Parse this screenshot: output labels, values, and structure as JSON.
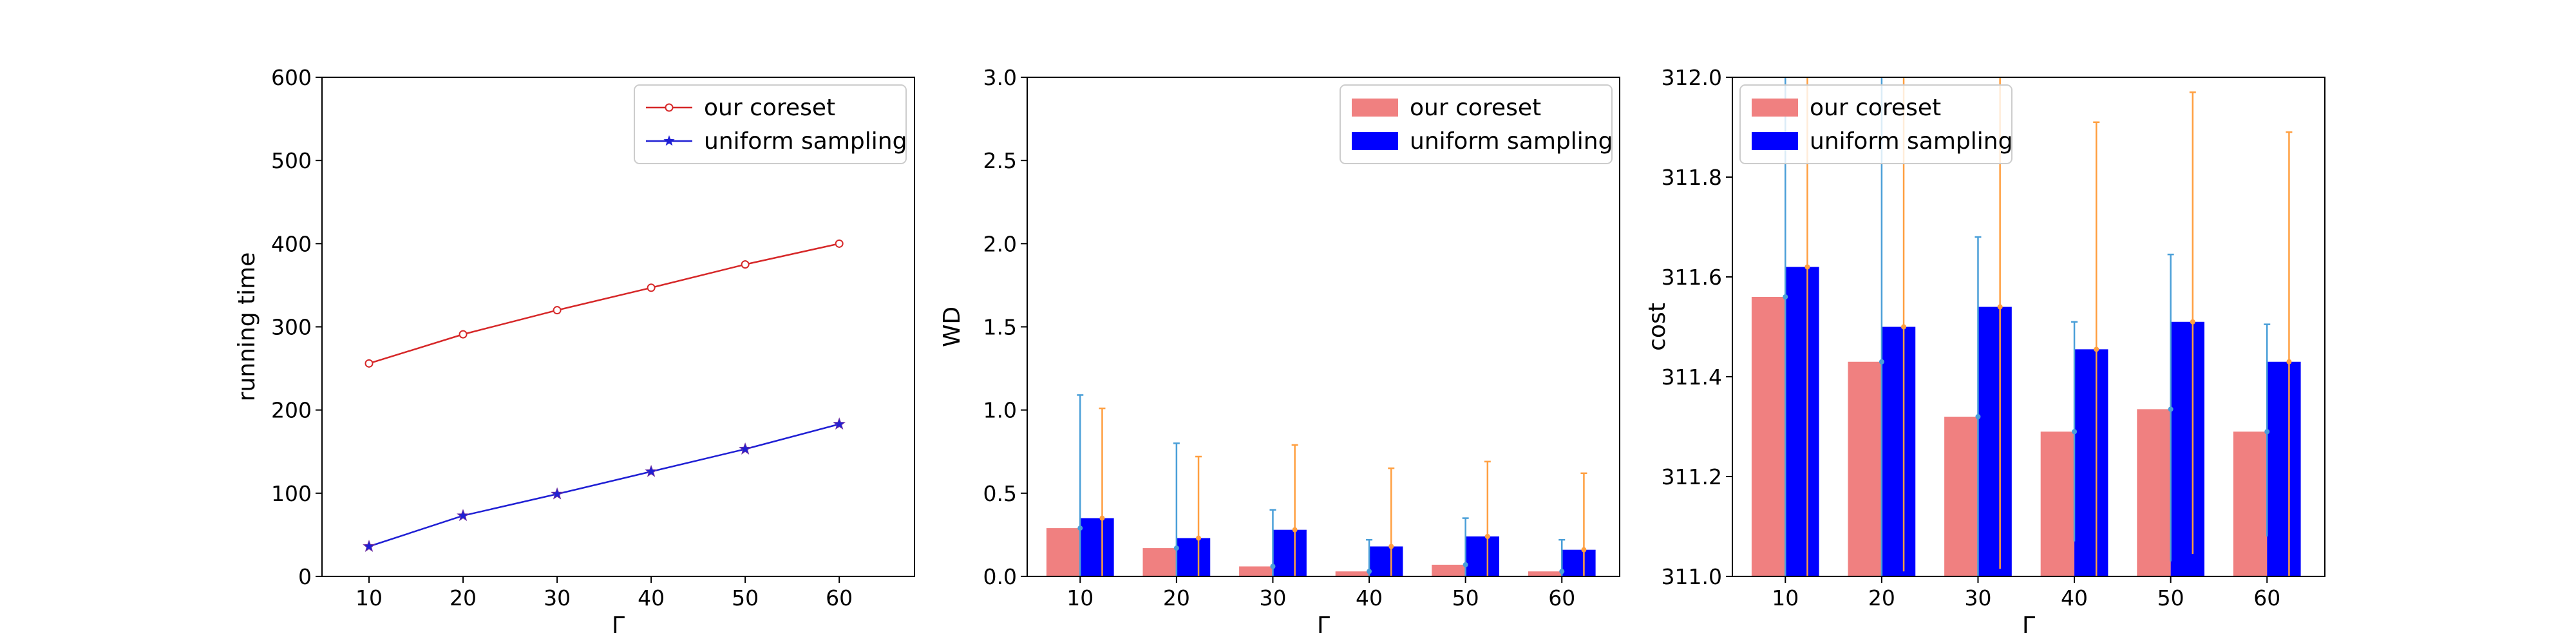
{
  "chart_data": [
    {
      "type": "line",
      "xlabel": "Γ",
      "ylabel": "running time",
      "x": [
        10,
        20,
        30,
        40,
        50,
        60
      ],
      "xticks": [
        "10",
        "20",
        "30",
        "40",
        "50",
        "60"
      ],
      "xlim": [
        5,
        68
      ],
      "ylim": [
        0,
        600
      ],
      "yticks": [
        "0",
        "100",
        "200",
        "300",
        "400",
        "500",
        "600"
      ],
      "legend_position": "top-right",
      "series": [
        {
          "name": "our coreset",
          "values": [
            256,
            291,
            320,
            347,
            375,
            400
          ],
          "err": [
            5,
            4,
            4,
            4,
            5,
            5
          ],
          "color": "#d62728",
          "marker": "circle"
        },
        {
          "name": "uniform sampling",
          "values": [
            36,
            73,
            99,
            126,
            153,
            183
          ],
          "err": [
            3,
            3,
            3,
            3,
            3,
            3
          ],
          "color": "#1f1fd4",
          "marker": "star"
        }
      ]
    },
    {
      "type": "bar",
      "xlabel": "Γ",
      "ylabel": "WD",
      "categories": [
        "10",
        "20",
        "30",
        "40",
        "50",
        "60"
      ],
      "ylim": [
        0,
        3.0
      ],
      "yticks": [
        "0.0",
        "0.5",
        "1.0",
        "1.5",
        "2.0",
        "2.5",
        "3.0"
      ],
      "legend_position": "top-right",
      "series": [
        {
          "name": "our coreset",
          "values": [
            0.29,
            0.17,
            0.06,
            0.03,
            0.07,
            0.03
          ],
          "err_high": [
            1.09,
            0.8,
            0.4,
            0.22,
            0.35,
            0.22
          ],
          "color": "#f08080",
          "err_color": "#4a9fd8"
        },
        {
          "name": "uniform sampling",
          "values": [
            0.35,
            0.23,
            0.28,
            0.18,
            0.24,
            0.16
          ],
          "err_high": [
            1.01,
            0.72,
            0.79,
            0.65,
            0.69,
            0.62
          ],
          "color": "#0000ff",
          "err_color": "#ff9f40"
        }
      ]
    },
    {
      "type": "bar",
      "xlabel": "Γ",
      "ylabel": "cost",
      "categories": [
        "10",
        "20",
        "30",
        "40",
        "50",
        "60"
      ],
      "ylim": [
        311.0,
        312.0
      ],
      "yticks": [
        "311.0",
        "311.2",
        "311.4",
        "311.6",
        "311.8",
        "312.0"
      ],
      "legend_position": "top-left",
      "series": [
        {
          "name": "our coreset",
          "values": [
            311.56,
            311.43,
            311.32,
            311.29,
            311.335,
            311.29
          ],
          "err_low": [
            311.0,
            311.0,
            311.0,
            311.07,
            311.03,
            311.08
          ],
          "err_high": [
            312.0,
            312.0,
            311.68,
            311.51,
            311.645,
            311.505
          ],
          "color": "#f08080",
          "err_color": "#4a9fd8"
        },
        {
          "name": "uniform sampling",
          "values": [
            311.62,
            311.5,
            311.54,
            311.455,
            311.51,
            311.43
          ],
          "err_low": [
            311.0,
            311.01,
            311.015,
            311.0,
            311.045,
            311.0
          ],
          "err_high": [
            312.0,
            312.0,
            312.0,
            311.91,
            311.97,
            311.89
          ],
          "color": "#0000ff",
          "err_color": "#ff9f40"
        }
      ]
    }
  ]
}
